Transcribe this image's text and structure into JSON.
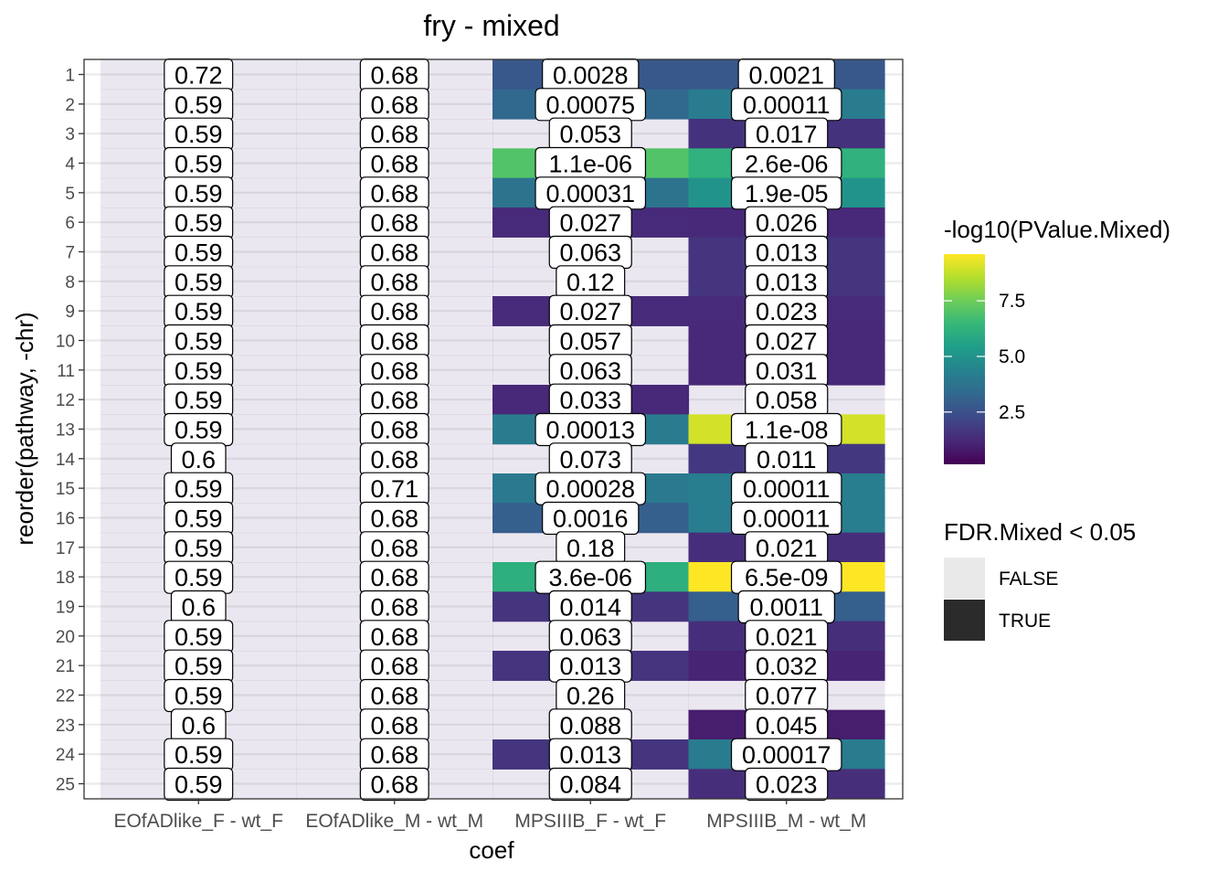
{
  "chart_data": {
    "type": "heatmap",
    "title": "fry - mixed",
    "xlabel": "coef",
    "ylabel": "reorder(pathway, -chr)",
    "categories": [
      "EOfADlike_F - wt_F",
      "EOfADlike_M - wt_M",
      "MPSIIIB_F - wt_F",
      "MPSIIIB_M - wt_M"
    ],
    "rows": [
      "1",
      "2",
      "3",
      "4",
      "5",
      "6",
      "7",
      "8",
      "9",
      "10",
      "11",
      "12",
      "13",
      "14",
      "15",
      "16",
      "17",
      "18",
      "19",
      "20",
      "21",
      "22",
      "23",
      "24",
      "25"
    ],
    "fill_legend": {
      "title": "-log10(PValue.Mixed)",
      "ticks": [
        "2.5",
        "5.0",
        "7.5"
      ],
      "range": [
        0.15,
        9.6
      ],
      "palette": "viridis"
    },
    "alpha_legend": {
      "title": "FDR.Mixed < 0.05",
      "entries": [
        {
          "label": "FALSE",
          "color": "#E9E9E9"
        },
        {
          "label": "TRUE",
          "color": "#2B2B2B"
        }
      ]
    },
    "grid": true,
    "legend_position": "right",
    "columns": [
      {
        "labels": [
          "0.72",
          "0.59",
          "0.59",
          "0.59",
          "0.59",
          "0.59",
          "0.59",
          "0.59",
          "0.59",
          "0.59",
          "0.59",
          "0.59",
          "0.59",
          "0.6",
          "0.59",
          "0.59",
          "0.59",
          "0.59",
          "0.6",
          "0.59",
          "0.59",
          "0.59",
          "0.6",
          "0.59",
          "0.59"
        ],
        "fdr": [
          false,
          false,
          false,
          false,
          false,
          false,
          false,
          false,
          false,
          false,
          false,
          false,
          false,
          false,
          false,
          false,
          false,
          false,
          false,
          false,
          false,
          false,
          false,
          false,
          false
        ],
        "fill": [
          null,
          null,
          null,
          null,
          null,
          null,
          null,
          null,
          null,
          null,
          null,
          null,
          null,
          null,
          null,
          null,
          null,
          null,
          null,
          null,
          null,
          null,
          null,
          null,
          null
        ]
      },
      {
        "labels": [
          "0.68",
          "0.68",
          "0.68",
          "0.68",
          "0.68",
          "0.68",
          "0.68",
          "0.68",
          "0.68",
          "0.68",
          "0.68",
          "0.68",
          "0.68",
          "0.68",
          "0.71",
          "0.68",
          "0.68",
          "0.68",
          "0.68",
          "0.68",
          "0.68",
          "0.68",
          "0.68",
          "0.68",
          "0.68"
        ],
        "fdr": [
          false,
          false,
          false,
          false,
          false,
          false,
          false,
          false,
          false,
          false,
          false,
          false,
          false,
          false,
          false,
          false,
          false,
          false,
          false,
          false,
          false,
          false,
          false,
          false,
          false
        ],
        "fill": [
          null,
          null,
          null,
          null,
          null,
          null,
          null,
          null,
          null,
          null,
          null,
          null,
          null,
          null,
          null,
          null,
          null,
          null,
          null,
          null,
          null,
          null,
          null,
          null,
          null
        ]
      },
      {
        "labels": [
          "0.0028",
          "0.00075",
          "0.053",
          "1.1e-06",
          "0.00031",
          "0.027",
          "0.063",
          "0.12",
          "0.027",
          "0.057",
          "0.063",
          "0.033",
          "0.00013",
          "0.073",
          "0.00028",
          "0.0016",
          "0.18",
          "3.6e-06",
          "0.014",
          "0.063",
          "0.013",
          "0.26",
          "0.088",
          "0.013",
          "0.084"
        ],
        "fdr": [
          true,
          true,
          false,
          true,
          true,
          true,
          false,
          false,
          true,
          false,
          false,
          true,
          true,
          false,
          true,
          true,
          false,
          true,
          true,
          false,
          true,
          false,
          false,
          true,
          false
        ],
        "fill": [
          2.7,
          3.3,
          null,
          7.0,
          3.8,
          1.3,
          null,
          null,
          1.3,
          null,
          null,
          1.2,
          4.1,
          null,
          4.0,
          3.0,
          null,
          6.1,
          1.6,
          null,
          1.6,
          null,
          null,
          1.6,
          null
        ]
      },
      {
        "labels": [
          "0.0021",
          "0.00011",
          "0.017",
          "2.6e-06",
          "1.9e-05",
          "0.026",
          "0.013",
          "0.013",
          "0.023",
          "0.027",
          "0.031",
          "0.058",
          "1.1e-08",
          "0.011",
          "0.00011",
          "0.00011",
          "0.021",
          "6.5e-09",
          "0.0011",
          "0.021",
          "0.032",
          "0.077",
          "0.045",
          "0.00017",
          "0.023"
        ],
        "fdr": [
          true,
          true,
          true,
          true,
          true,
          true,
          true,
          true,
          true,
          true,
          true,
          false,
          true,
          true,
          true,
          true,
          true,
          true,
          true,
          true,
          true,
          false,
          true,
          true,
          true
        ],
        "fill": [
          2.7,
          4.1,
          1.5,
          6.2,
          5.0,
          1.2,
          1.6,
          1.6,
          1.3,
          1.2,
          1.2,
          null,
          9.0,
          1.7,
          4.2,
          4.2,
          1.4,
          9.6,
          3.0,
          1.4,
          1.1,
          null,
          0.9,
          4.1,
          1.4
        ]
      }
    ]
  }
}
